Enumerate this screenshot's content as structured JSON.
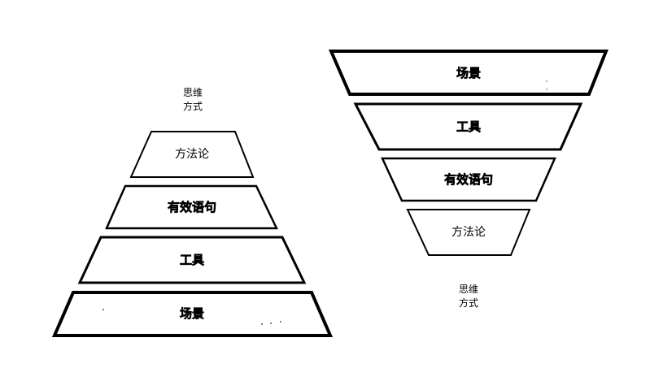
{
  "pyramid": {
    "caption_line1": "思维",
    "caption_line2": "方式",
    "layers": [
      {
        "label": "方法论",
        "bold": false
      },
      {
        "label": "有效语句",
        "bold": true
      },
      {
        "label": "工具",
        "bold": true
      },
      {
        "label": "场景",
        "bold": true
      }
    ]
  },
  "funnel": {
    "caption_line1": "思维",
    "caption_line2": "方式",
    "layers": [
      {
        "label": "场景",
        "bold": true
      },
      {
        "label": "工具",
        "bold": true
      },
      {
        "label": "有效语句",
        "bold": true
      },
      {
        "label": "方法论",
        "bold": false
      }
    ]
  },
  "colors": {
    "stroke": "#000000",
    "fill": "#ffffff"
  }
}
